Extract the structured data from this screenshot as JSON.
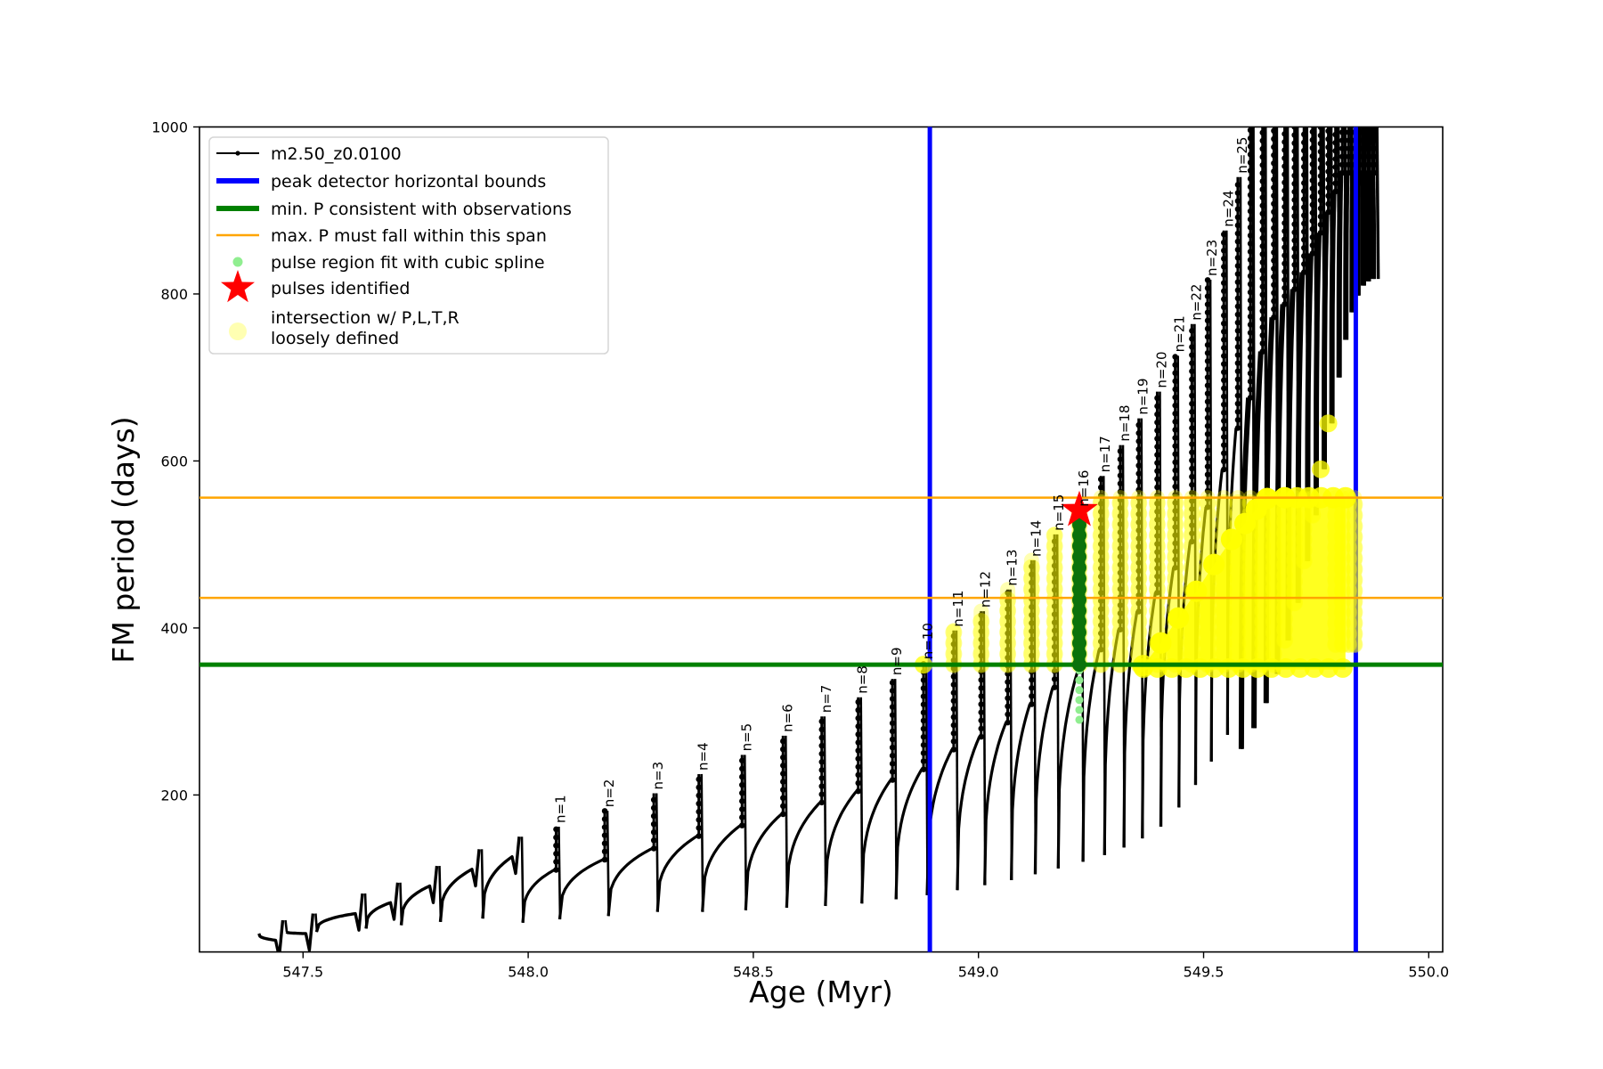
{
  "chart_data": {
    "type": "line",
    "title": "",
    "xlabel": "Age (Myr)",
    "ylabel": "FM period (days)",
    "xlim": [
      547.27,
      550.031
    ],
    "ylim": [
      12,
      1000
    ],
    "xticks": [
      547.5,
      548.0,
      548.5,
      549.0,
      549.5,
      550.0
    ],
    "yticks": [
      200,
      400,
      600,
      800,
      1000
    ],
    "grid": false,
    "legend_position": "upper left",
    "series_name": "m2.50_z0.0100",
    "pulse_label_prefix": "n=",
    "peak_detector_bounds_ages": [
      548.892,
      549.838
    ],
    "min_p_days": 356,
    "max_p_span_days": [
      436,
      556
    ],
    "identified_pulse": {
      "n": 16,
      "age": 549.224,
      "period": 541
    },
    "spline_fit_column": {
      "age": 549.224,
      "period_range": [
        290,
        545
      ]
    },
    "pulse_region_column": {
      "age": 549.224,
      "period_range": [
        356,
        528
      ]
    },
    "track_start": {
      "age": 547.394,
      "period": 34
    },
    "pre_pulse_teeth": [
      {
        "age": 547.455,
        "peak": 50,
        "valley": 34
      },
      {
        "age": 547.522,
        "peak": 58,
        "valley": 36
      },
      {
        "age": 547.632,
        "peak": 82,
        "valley": 36
      },
      {
        "age": 547.71,
        "peak": 95,
        "valley": 40
      },
      {
        "age": 547.797,
        "peak": 115,
        "valley": 44
      },
      {
        "age": 547.891,
        "peak": 135,
        "valley": 48
      },
      {
        "age": 547.98,
        "peak": 150,
        "valley": 52
      }
    ],
    "pulses": [
      {
        "n": 1,
        "age": 548.062,
        "peak": 162,
        "valley": 47
      },
      {
        "n": 2,
        "age": 548.17,
        "peak": 181,
        "valley": 51
      },
      {
        "n": 3,
        "age": 548.279,
        "peak": 202,
        "valley": 55
      },
      {
        "n": 4,
        "age": 548.379,
        "peak": 225,
        "valley": 60
      },
      {
        "n": 5,
        "age": 548.475,
        "peak": 248,
        "valley": 60
      },
      {
        "n": 6,
        "age": 548.566,
        "peak": 271,
        "valley": 62
      },
      {
        "n": 7,
        "age": 548.652,
        "peak": 294,
        "valley": 65
      },
      {
        "n": 8,
        "age": 548.733,
        "peak": 317,
        "valley": 67
      },
      {
        "n": 9,
        "age": 548.809,
        "peak": 339,
        "valley": 70
      },
      {
        "n": 10,
        "age": 548.878,
        "peak": 358,
        "valley": 75
      },
      {
        "n": 11,
        "age": 548.945,
        "peak": 397,
        "valley": 80
      },
      {
        "n": 12,
        "age": 549.006,
        "peak": 420,
        "valley": 86
      },
      {
        "n": 13,
        "age": 549.065,
        "peak": 446,
        "valley": 92
      },
      {
        "n": 14,
        "age": 549.118,
        "peak": 481,
        "valley": 98
      },
      {
        "n": 15,
        "age": 549.169,
        "peak": 512,
        "valley": 105
      },
      {
        "n": 16,
        "age": 549.224,
        "peak": 541,
        "valley": 112
      },
      {
        "n": 17,
        "age": 549.272,
        "peak": 582,
        "valley": 120
      },
      {
        "n": 18,
        "age": 549.315,
        "peak": 619,
        "valley": 128
      },
      {
        "n": 19,
        "age": 549.356,
        "peak": 651,
        "valley": 137
      },
      {
        "n": 20,
        "age": 549.397,
        "peak": 683,
        "valley": 148
      },
      {
        "n": 21,
        "age": 549.437,
        "peak": 726,
        "valley": 162
      },
      {
        "n": 22,
        "age": 549.474,
        "peak": 764,
        "valley": 185
      },
      {
        "n": 23,
        "age": 549.509,
        "peak": 817,
        "valley": 212
      },
      {
        "n": 24,
        "age": 549.545,
        "peak": 876,
        "valley": 240
      },
      {
        "n": 25,
        "age": 549.576,
        "peak": 940,
        "valley": 272
      }
    ],
    "post_pulse_columns": [
      {
        "age": 549.604,
        "peak": 1020,
        "valley": 255
      },
      {
        "age": 549.631,
        "peak": 1100,
        "valley": 280
      },
      {
        "age": 549.656,
        "peak": 1200,
        "valley": 310
      },
      {
        "age": 549.68,
        "peak": 1300,
        "valley": 345
      },
      {
        "age": 549.702,
        "peak": 1450,
        "valley": 385
      },
      {
        "age": 549.723,
        "peak": 1600,
        "valley": 430
      },
      {
        "age": 549.742,
        "peak": 1800,
        "valley": 480
      },
      {
        "age": 549.76,
        "peak": 2000,
        "valley": 535
      },
      {
        "age": 549.777,
        "peak": 2200,
        "valley": 590
      },
      {
        "age": 549.793,
        "peak": 2500,
        "valley": 645
      },
      {
        "age": 549.808,
        "peak": 2800,
        "valley": 700
      },
      {
        "age": 549.822,
        "peak": 3100,
        "valley": 745
      },
      {
        "age": 549.835,
        "peak": 3400,
        "valley": 778
      },
      {
        "age": 549.847,
        "peak": 3700,
        "valley": 798
      },
      {
        "age": 549.858,
        "peak": 4000,
        "valley": 810
      },
      {
        "age": 549.869,
        "peak": 4300,
        "valley": 815
      },
      {
        "age": 549.879,
        "peak": 4600,
        "valley": 818
      }
    ],
    "intersection_band": {
      "age_range": [
        548.878,
        549.838
      ],
      "period_range": [
        356,
        556
      ]
    },
    "intersection_wedge_top": [
      [
        549.366,
        355
      ],
      [
        549.405,
        382
      ],
      [
        549.444,
        412
      ],
      [
        549.484,
        444
      ],
      [
        549.523,
        476
      ],
      [
        549.562,
        506
      ],
      [
        549.592,
        525
      ],
      [
        549.617,
        542
      ],
      [
        549.641,
        555
      ],
      [
        549.68,
        556
      ],
      [
        549.815,
        556
      ]
    ],
    "colors": {
      "series": "#000000",
      "bounds_blue": "#0000ff",
      "min_p_green": "#008000",
      "max_p_orange": "#ffa500",
      "spline_lightgreen": "#90ee90",
      "pulse_region_darkgreen": "#0b720b",
      "star_red": "#ff0000",
      "intersection_yellow": "#ffff00",
      "intersection_legend_pale": "#ffffb2",
      "legend_border": "#d5d5d5"
    }
  },
  "legend": {
    "entries": [
      {
        "label": "m2.50_z0.0100"
      },
      {
        "label": "peak detector horizontal bounds"
      },
      {
        "label": "min. P consistent with observations"
      },
      {
        "label": "max. P must fall within this span"
      },
      {
        "label": "pulse region fit with cubic spline"
      },
      {
        "label": "pulses identified"
      },
      {
        "label": "intersection w/ P,L,T,R",
        "label2": "loosely defined"
      }
    ]
  }
}
